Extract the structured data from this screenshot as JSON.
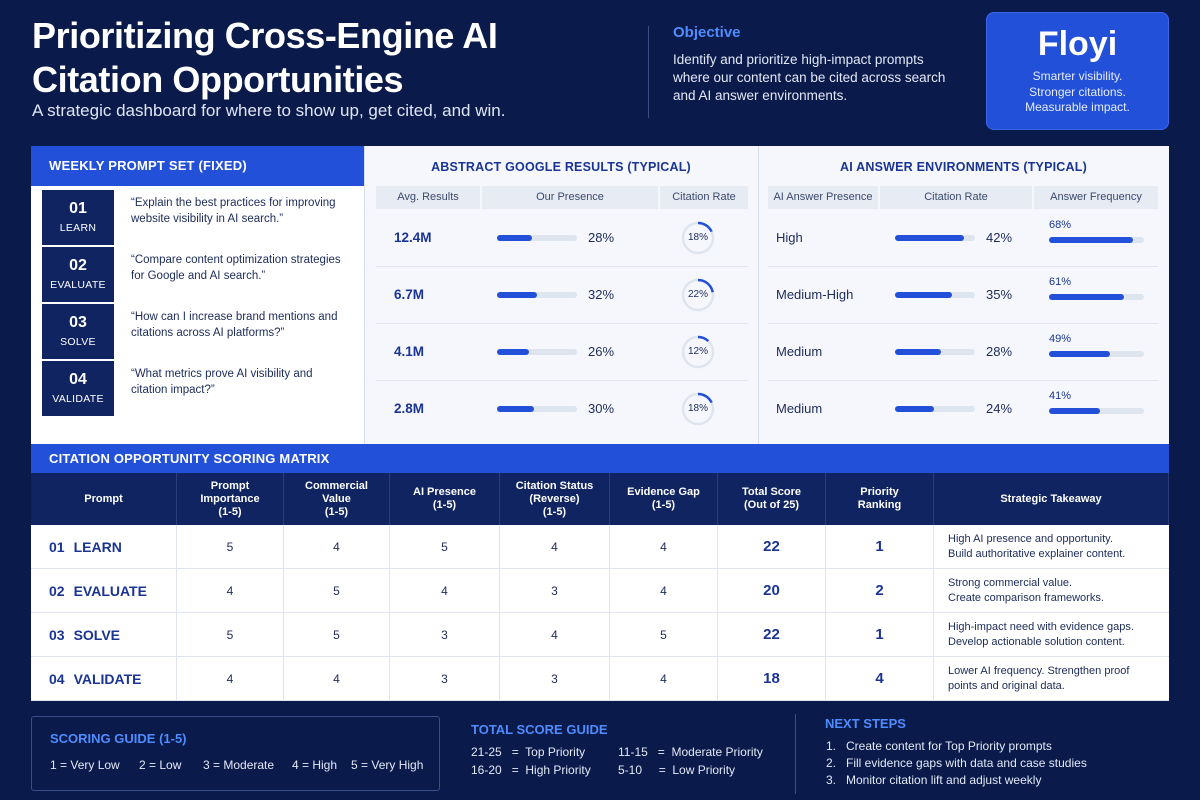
{
  "header": {
    "title": "Prioritizing Cross-Engine AI Citation Opportunities",
    "subtitle": "A strategic dashboard for where to show up, get cited, and win.",
    "objective_label": "Objective",
    "objective_text": "Identify and prioritize high-impact prompts where our content can be cited across search and AI answer environments."
  },
  "brand": {
    "name": "Floyi",
    "taglines": [
      "Smarter visibility.",
      "Stronger citations.",
      "Measurable impact."
    ]
  },
  "weekly": {
    "title": "WEEKLY PROMPT SET (FIXED)",
    "prompts": [
      {
        "num": "01",
        "label": "LEARN",
        "text": "“Explain the best practices for improving website visibility in AI search.”"
      },
      {
        "num": "02",
        "label": "EVALUATE",
        "text": "“Compare content optimization strategies for Google and AI search.”"
      },
      {
        "num": "03",
        "label": "SOLVE",
        "text": "“How can I increase brand mentions and citations across AI platforms?”"
      },
      {
        "num": "04",
        "label": "VALIDATE",
        "text": "“What metrics prove AI visibility and citation impact?”"
      }
    ]
  },
  "google": {
    "title": "ABSTRACT GOOGLE RESULTS (TYPICAL)",
    "columns": [
      "Avg. Results",
      "Our Presence",
      "Citation Rate"
    ],
    "rows": [
      {
        "results": "12.4M",
        "presence": 28,
        "presence_label": "28%",
        "citation": 18,
        "citation_label": "18%"
      },
      {
        "results": "6.7M",
        "presence": 32,
        "presence_label": "32%",
        "citation": 22,
        "citation_label": "22%"
      },
      {
        "results": "4.1M",
        "presence": 26,
        "presence_label": "26%",
        "citation": 12,
        "citation_label": "12%"
      },
      {
        "results": "2.8M",
        "presence": 30,
        "presence_label": "30%",
        "citation": 18,
        "citation_label": "18%"
      }
    ]
  },
  "ai": {
    "title": "AI ANSWER ENVIRONMENTS (TYPICAL)",
    "columns": [
      "AI Answer Presence",
      "Citation Rate",
      "Answer Frequency"
    ],
    "rows": [
      {
        "presence": "High",
        "citation": 42,
        "citation_label": "42%",
        "frequency": 68,
        "frequency_label": "68%"
      },
      {
        "presence": "Medium-High",
        "citation": 35,
        "citation_label": "35%",
        "frequency": 61,
        "frequency_label": "61%"
      },
      {
        "presence": "Medium",
        "citation": 28,
        "citation_label": "28%",
        "frequency": 49,
        "frequency_label": "49%"
      },
      {
        "presence": "Medium",
        "citation": 24,
        "citation_label": "24%",
        "frequency": 41,
        "frequency_label": "41%"
      }
    ]
  },
  "matrix": {
    "title": "CITATION OPPORTUNITY SCORING MATRIX",
    "headers": [
      "Prompt",
      "Prompt\nImportance\n(1-5)",
      "Commercial\nValue\n(1-5)",
      "AI Presence\n(1-5)",
      "Citation Status\n(Reverse)\n(1-5)",
      "Evidence Gap\n(1-5)",
      "Total Score\n(Out of 25)",
      "Priority\nRanking",
      "Strategic Takeaway"
    ],
    "rows": [
      {
        "num": "01",
        "name": "LEARN",
        "importance": "5",
        "commercial": "4",
        "ai": "5",
        "citation": "4",
        "gap": "4",
        "total": "22",
        "rank": "1",
        "takeaway": "High AI presence and opportunity.\nBuild authoritative explainer content."
      },
      {
        "num": "02",
        "name": "EVALUATE",
        "importance": "4",
        "commercial": "5",
        "ai": "4",
        "citation": "3",
        "gap": "4",
        "total": "20",
        "rank": "2",
        "takeaway": "Strong commercial value.\nCreate comparison frameworks."
      },
      {
        "num": "03",
        "name": "SOLVE",
        "importance": "5",
        "commercial": "5",
        "ai": "3",
        "citation": "4",
        "gap": "5",
        "total": "22",
        "rank": "1",
        "takeaway": "High-impact need with evidence gaps.\nDevelop actionable solution content."
      },
      {
        "num": "04",
        "name": "VALIDATE",
        "importance": "4",
        "commercial": "4",
        "ai": "3",
        "citation": "3",
        "gap": "4",
        "total": "18",
        "rank": "4",
        "takeaway": "Lower AI frequency. Strengthen proof\npoints and original data."
      }
    ]
  },
  "scoring_guide": {
    "title": "SCORING GUIDE (1-5)",
    "items": [
      "1 = Very Low",
      "2 = Low",
      "3 = Moderate",
      "4 = High",
      "5 = Very High"
    ]
  },
  "total_score_guide": {
    "title": "TOTAL SCORE GUIDE",
    "items": [
      "21-25   =  Top Priority",
      "16-20   =  High Priority",
      "11-15   =  Moderate Priority",
      "5-10     =  Low Priority"
    ]
  },
  "next_steps": {
    "title": "NEXT STEPS",
    "items": [
      "1.   Create content for Top Priority prompts",
      "2.   Fill evidence gaps with data and case studies",
      "3.   Monitor citation lift and adjust weekly"
    ]
  },
  "colors": {
    "background": "#0a1a4a",
    "accent": "#2350d8",
    "navy": "#0f2461",
    "heading_blue": "#1a3494",
    "link_blue": "#4f8cff"
  }
}
